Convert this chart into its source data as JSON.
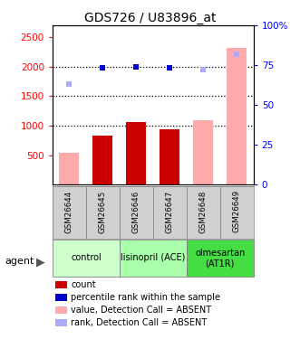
{
  "title": "GDS726 / U83896_at",
  "samples": [
    "GSM26644",
    "GSM26645",
    "GSM26646",
    "GSM26647",
    "GSM26648",
    "GSM26649"
  ],
  "bar_values": [
    540,
    840,
    1060,
    940,
    1090,
    2320
  ],
  "bar_colors": [
    "#ffaaaa",
    "#cc0000",
    "#cc0000",
    "#cc0000",
    "#ffaaaa",
    "#ffaaaa"
  ],
  "dot_values": [
    1700,
    1980,
    1990,
    1980,
    1950,
    2210
  ],
  "dot_colors": [
    "#aaaaff",
    "#0000cc",
    "#0000cc",
    "#0000cc",
    "#aaaaff",
    "#aaaaff"
  ],
  "ylim_left": [
    0,
    2700
  ],
  "yticks_left": [
    500,
    1000,
    1500,
    2000,
    2500
  ],
  "ytick_labels_left": [
    "500",
    "1000",
    "1500",
    "2000",
    "2500"
  ],
  "yticks_right": [
    0,
    25,
    50,
    75,
    100
  ],
  "ytick_labels_right": [
    "0",
    "25",
    "50",
    "75",
    "100%"
  ],
  "group_defs": [
    {
      "start": 0,
      "end": 1,
      "label": "control",
      "color": "#ccffcc"
    },
    {
      "start": 2,
      "end": 3,
      "label": "lisinopril (ACE)",
      "color": "#aaffaa"
    },
    {
      "start": 4,
      "end": 5,
      "label": "olmesartan\n(AT1R)",
      "color": "#44dd44"
    }
  ],
  "legend_items": [
    {
      "label": "count",
      "color": "#cc0000"
    },
    {
      "label": "percentile rank within the sample",
      "color": "#0000cc"
    },
    {
      "label": "value, Detection Call = ABSENT",
      "color": "#ffaaaa"
    },
    {
      "label": "rank, Detection Call = ABSENT",
      "color": "#aaaaff"
    }
  ]
}
